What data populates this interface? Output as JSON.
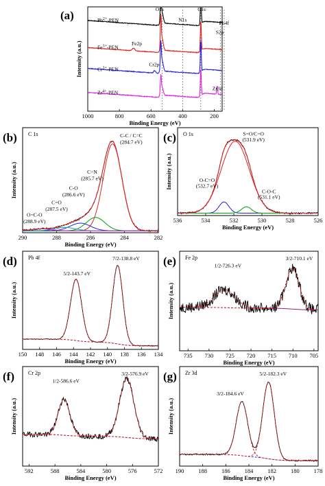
{
  "chart_data": [
    {
      "id": "a",
      "panel_label": "(a)",
      "type": "line",
      "xlabel": "Binding Energy (eV)",
      "ylabel": "Intensity (a.u.)",
      "xlim": [
        1000,
        150
      ],
      "ylim": [
        0,
        10
      ],
      "xticks": [
        1000,
        800,
        600,
        400,
        200
      ],
      "yticks": [],
      "series": [
        {
          "name": "Pb2+-PEN",
          "name_html": "Pb<tspan baseline-shift='super' font-size='6'>2+</tspan>-PEN",
          "color": "#000000",
          "base": 7.8,
          "slope": 0.9,
          "noise": 0.06,
          "peaks": [
            [
              538,
              3.0,
              3
            ],
            [
              531,
              1.2,
              8
            ],
            [
              285,
              2.7,
              3
            ],
            [
              139,
              1.5,
              4
            ]
          ],
          "steps": [
            [
              528,
              -0.25,
              40
            ],
            [
              282,
              -0.45,
              40
            ]
          ],
          "label": [
            0.93,
            8.55
          ]
        },
        {
          "name": "Fe3+-PEN",
          "name_html": "Fe<tspan baseline-shift='super' font-size='6'>3+</tspan>-PEN",
          "color": "#e02020",
          "base": 5.2,
          "slope": 0.9,
          "noise": 0.06,
          "peaks": [
            [
              710,
              0.25,
              8
            ],
            [
              538,
              2.8,
              3
            ],
            [
              531,
              1.3,
              8
            ],
            [
              285,
              2.9,
              3
            ]
          ],
          "steps": [
            [
              528,
              -0.25,
              40
            ],
            [
              282,
              -0.45,
              40
            ]
          ],
          "label": [
            0.93,
            5.95
          ]
        },
        {
          "name": "Cr3+-PEN",
          "name_html": "Cr<tspan baseline-shift='super' font-size='6'>3+</tspan>-PEN",
          "color": "#2020e0",
          "base": 3.2,
          "slope": 0.9,
          "noise": 0.06,
          "peaks": [
            [
              577,
              0.25,
              6
            ],
            [
              538,
              2.3,
              3
            ],
            [
              531,
              1.2,
              8
            ],
            [
              285,
              3.0,
              3
            ]
          ],
          "steps": [
            [
              528,
              -0.25,
              40
            ],
            [
              282,
              -0.45,
              40
            ]
          ],
          "label": [
            0.93,
            3.85
          ]
        },
        {
          "name": "Zr4+-PEN",
          "name_html": "Zr<tspan baseline-shift='super' font-size='6'>4+</tspan>-PEN",
          "color": "#e020e0",
          "base": 0.9,
          "slope": 0.9,
          "noise": 0.06,
          "peaks": [
            [
              538,
              1.6,
              3
            ],
            [
              531,
              0.9,
              8
            ],
            [
              285,
              2.6,
              3
            ],
            [
              182,
              0.8,
              3
            ]
          ],
          "steps": [
            [
              528,
              -0.25,
              40
            ],
            [
              282,
              -0.45,
              40
            ]
          ],
          "label": [
            0.93,
            1.6
          ]
        }
      ],
      "vlines": [
        530,
        400,
        285,
        160,
        137
      ],
      "annotations": [
        {
          "text": "O1s",
          "x": 545,
          "y": 9.6
        },
        {
          "text": "N1s",
          "x": 400,
          "y": 8.6
        },
        {
          "text": "C1s",
          "x": 280,
          "y": 9.6
        },
        {
          "text": "Pb4f",
          "x": 138,
          "y": 8.3
        },
        {
          "text": "S2p",
          "x": 165,
          "y": 7.4
        },
        {
          "text": "Fe2p",
          "x": 690,
          "y": 6.3
        },
        {
          "text": "Cr2p",
          "x": 580,
          "y": 4.3
        },
        {
          "text": "Zr3d",
          "x": 180,
          "y": 2.0
        }
      ]
    },
    {
      "id": "b",
      "panel_label": "(b)",
      "type": "line",
      "xlabel": "Binding Energy (eV)",
      "ylabel": "Intensity (a.u.)",
      "title": "C 1s",
      "xlim": [
        290,
        282
      ],
      "ylim": [
        0,
        1.1
      ],
      "xticks": [
        290,
        288,
        286,
        284,
        282
      ],
      "baseline": 0.02,
      "noise": 0.008,
      "components": [
        {
          "name": "C-C / C=C",
          "center": 284.7,
          "amp": 0.91,
          "width": 0.55,
          "color": "#e02020"
        },
        {
          "name": "C=N",
          "center": 285.7,
          "amp": 0.14,
          "width": 0.55,
          "color": "#00a000"
        },
        {
          "name": "C-O",
          "center": 286.6,
          "amp": 0.08,
          "width": 0.6,
          "color": "#2020e0"
        },
        {
          "name": "C=O",
          "center": 287.5,
          "amp": 0.035,
          "width": 0.6,
          "color": "#00b0b0"
        },
        {
          "name": "O=C-O",
          "center": 288.9,
          "amp": 0.02,
          "width": 0.6,
          "color": "#e020e0"
        }
      ],
      "annotations": [
        {
          "text": "C-C / C=C",
          "x": 283.6,
          "y": 1.0
        },
        {
          "text": "(284.7 eV)",
          "x": 283.6,
          "y": 0.93
        },
        {
          "text": "C=N",
          "x": 285.9,
          "y": 0.62
        },
        {
          "text": "(285.7 eV)",
          "x": 285.9,
          "y": 0.55
        },
        {
          "text": "C-O",
          "x": 287.0,
          "y": 0.45
        },
        {
          "text": "(286.6 eV)",
          "x": 287.0,
          "y": 0.38
        },
        {
          "text": "C=O",
          "x": 288.0,
          "y": 0.3
        },
        {
          "text": "(287.5 eV)",
          "x": 288.0,
          "y": 0.23
        },
        {
          "text": "O=C-O",
          "x": 289.3,
          "y": 0.17
        },
        {
          "text": "(288.9 eV)",
          "x": 289.3,
          "y": 0.1
        }
      ]
    },
    {
      "id": "c",
      "panel_label": "(c)",
      "type": "line",
      "xlabel": "Binding Energy (eV)",
      "ylabel": "Intensity (a.u.)",
      "title": "O 1s",
      "xlim": [
        536,
        526
      ],
      "ylim": [
        0,
        1.1
      ],
      "xticks": [
        536,
        534,
        532,
        530,
        528,
        526
      ],
      "baseline": 0.03,
      "noise": 0.01,
      "components": [
        {
          "name": "S=O/C=O",
          "center": 531.9,
          "amp": 0.9,
          "width": 1.0,
          "color": "#e02020"
        },
        {
          "name": "O-C=O",
          "center": 532.7,
          "amp": 0.14,
          "width": 0.35,
          "color": "#2020e0"
        },
        {
          "name": "C-O-C",
          "center": 531.1,
          "amp": 0.08,
          "width": 0.35,
          "color": "#00a000"
        }
      ],
      "annotations": [
        {
          "text": "S=O/C=O",
          "x": 530.6,
          "y": 1.0
        },
        {
          "text": "(531.9 eV)",
          "x": 530.6,
          "y": 0.93
        },
        {
          "text": "O-C=O",
          "x": 533.9,
          "y": 0.42
        },
        {
          "text": "(532.7 eV)",
          "x": 533.9,
          "y": 0.35
        },
        {
          "text": "C-O-C",
          "x": 529.5,
          "y": 0.28
        },
        {
          "text": "(531.1 eV)",
          "x": 529.5,
          "y": 0.21
        }
      ]
    },
    {
      "id": "d",
      "panel_label": "(d)",
      "type": "line",
      "xlabel": "Binding Energy (eV)",
      "ylabel": "Intensity (a.u.)",
      "title": "Pb 4f",
      "xlim": [
        150,
        134
      ],
      "ylim": [
        0,
        1.1
      ],
      "xticks": [
        150,
        148,
        146,
        144,
        142,
        140,
        138,
        136,
        134
      ],
      "baseline": 0.04,
      "noise": 0.005,
      "bg_color": "#2020e0",
      "comp_color": "#e02020",
      "components": [
        {
          "name": "5/2-143.7 eV",
          "center": 143.7,
          "amp": 0.69,
          "width": 0.65
        },
        {
          "name": "7/2-138.8 eV",
          "center": 138.8,
          "amp": 0.88,
          "width": 0.6
        }
      ],
      "annotations": [
        {
          "text": "5/2-143.7 eV",
          "x": 143.6,
          "y": 0.83
        },
        {
          "text": "7/2-138.8 eV",
          "x": 137.8,
          "y": 1.0
        }
      ]
    },
    {
      "id": "e",
      "panel_label": "(e)",
      "type": "line",
      "xlabel": "Binding Energy (eV)",
      "ylabel": "Intensity (a.u.)",
      "title": "Fe 2p",
      "xlim": [
        737,
        704
      ],
      "ylim": [
        0,
        1.1
      ],
      "xticks": [
        735,
        730,
        725,
        720,
        715,
        710,
        705
      ],
      "baseline": 0.45,
      "noise": 0.06,
      "bg_color": "#2020e0",
      "comp_color": "#e02020",
      "components": [
        {
          "name": "1/2-726.3 eV",
          "center": 726.3,
          "amp": 0.2,
          "width": 2.5
        },
        {
          "name": "3/2-710.1 eV",
          "center": 710.1,
          "amp": 0.45,
          "width": 1.6
        }
      ],
      "annotations": [
        {
          "text": "1/2-726.3 eV",
          "x": 725.5,
          "y": 0.92
        },
        {
          "text": "3/2-710.1 eV",
          "x": 708.5,
          "y": 1.0
        }
      ]
    },
    {
      "id": "f",
      "panel_label": "(f)",
      "type": "line",
      "xlabel": "Binding Energy (eV)",
      "ylabel": "Intensity (a.u.)",
      "title": "Cr 2p",
      "xlim": [
        593,
        572
      ],
      "ylim": [
        0,
        1.1
      ],
      "xticks": [
        592,
        588,
        584,
        580,
        576,
        572
      ],
      "baseline": 0.3,
      "noise": 0.03,
      "bg_color": "#2020e0",
      "comp_color": "#e02020",
      "components": [
        {
          "name": "1/2-586.6 eV",
          "center": 586.6,
          "amp": 0.4,
          "width": 0.9
        },
        {
          "name": "3/2-576.9 eV",
          "center": 576.9,
          "amp": 0.65,
          "width": 1.1
        }
      ],
      "annotations": [
        {
          "text": "1/2-586.6 eV",
          "x": 586.3,
          "y": 0.92
        },
        {
          "text": "3/2-576.9 eV",
          "x": 575.6,
          "y": 1.0
        }
      ]
    },
    {
      "id": "g",
      "panel_label": "(g)",
      "type": "line",
      "xlabel": "Binding Energy (eV)",
      "ylabel": "Intensity (a.u.)",
      "title": "Zr 3d",
      "xlim": [
        190,
        178
      ],
      "ylim": [
        0,
        1.1
      ],
      "xticks": [
        190,
        188,
        186,
        184,
        182,
        180,
        178
      ],
      "baseline": 0.06,
      "noise": 0.008,
      "bg_color": "#2020e0",
      "comp_color": "#e02020",
      "components": [
        {
          "name": "3/2-184.6 eV",
          "center": 184.6,
          "amp": 0.6,
          "width": 0.5
        },
        {
          "name": "5/2-182.3 eV",
          "center": 182.3,
          "amp": 0.85,
          "width": 0.5
        }
      ],
      "annotations": [
        {
          "text": "3/2-184.6 eV",
          "x": 185.6,
          "y": 0.78
        },
        {
          "text": "5/2-182.3 eV",
          "x": 181.9,
          "y": 1.0
        }
      ]
    }
  ]
}
